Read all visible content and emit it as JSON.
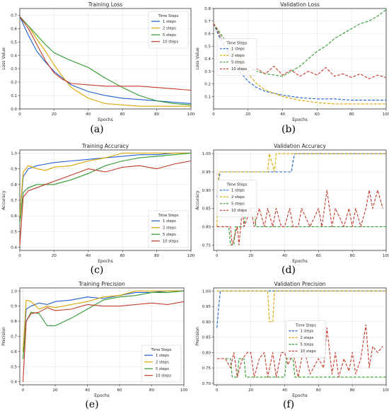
{
  "colors": {
    "1 steps": "#1f5fd0",
    "2 steps": "#d9a400",
    "5 steps": "#2e9a2e",
    "10 steps": "#c43a2a"
  },
  "legend_title": "Time Steps",
  "chart_data": [
    {
      "id": "a",
      "caption": "(a)",
      "type": "line",
      "title": "Training Loss",
      "xlabel": "Epochs",
      "ylabel": "Loss Value",
      "xlim": [
        0,
        100
      ],
      "ylim": [
        0,
        0.75
      ],
      "xticks": [
        0,
        20,
        40,
        60,
        80,
        100
      ],
      "yticks": [
        0.0,
        0.1,
        0.2,
        0.3,
        0.4,
        0.5,
        0.6,
        0.7
      ],
      "ytick_labels": [
        "0.0",
        "0.1",
        "0.2",
        "0.3",
        "0.4",
        "0.5",
        "0.6",
        "0.7"
      ],
      "grid": true,
      "legend_position": "top-right",
      "dashed": false,
      "series": [
        {
          "name": "1 steps",
          "x": [
            0,
            5,
            10,
            15,
            20,
            25,
            30,
            40,
            50,
            60,
            70,
            80,
            90,
            100
          ],
          "y": [
            0.69,
            0.55,
            0.43,
            0.35,
            0.28,
            0.23,
            0.18,
            0.13,
            0.1,
            0.08,
            0.07,
            0.06,
            0.05,
            0.04
          ]
        },
        {
          "name": "2 steps",
          "x": [
            0,
            5,
            10,
            15,
            20,
            25,
            30,
            40,
            50,
            60,
            70,
            80,
            90,
            100
          ],
          "y": [
            0.69,
            0.62,
            0.52,
            0.43,
            0.33,
            0.24,
            0.16,
            0.08,
            0.04,
            0.03,
            0.02,
            0.02,
            0.02,
            0.02
          ]
        },
        {
          "name": "5 steps",
          "x": [
            0,
            5,
            10,
            15,
            20,
            25,
            30,
            40,
            50,
            60,
            70,
            80,
            90,
            100
          ],
          "y": [
            0.69,
            0.62,
            0.55,
            0.48,
            0.42,
            0.39,
            0.36,
            0.31,
            0.23,
            0.16,
            0.1,
            0.06,
            0.04,
            0.03
          ]
        },
        {
          "name": "10 steps",
          "x": [
            0,
            5,
            10,
            15,
            20,
            25,
            30,
            40,
            50,
            60,
            70,
            80,
            90,
            100
          ],
          "y": [
            0.69,
            0.6,
            0.48,
            0.36,
            0.27,
            0.22,
            0.19,
            0.18,
            0.17,
            0.17,
            0.17,
            0.16,
            0.15,
            0.14
          ]
        }
      ]
    },
    {
      "id": "b",
      "caption": "(b)",
      "type": "line",
      "title": "Validation Loss",
      "xlabel": "Epochs",
      "ylabel": "Loss Value",
      "xlim": [
        0,
        100
      ],
      "ylim": [
        0,
        0.8
      ],
      "xticks": [
        0,
        20,
        40,
        60,
        80,
        100
      ],
      "yticks": [
        0.1,
        0.2,
        0.3,
        0.4,
        0.5,
        0.6,
        0.7,
        0.8
      ],
      "ytick_labels": [
        "0.1",
        "0.2",
        "0.3",
        "0.4",
        "0.5",
        "0.6",
        "0.7",
        "0.8"
      ],
      "grid": true,
      "legend_position": "left",
      "dashed": true,
      "series": [
        {
          "name": "1 steps",
          "x": [
            0,
            5,
            10,
            15,
            20,
            25,
            30,
            40,
            50,
            60,
            70,
            80,
            90,
            100
          ],
          "y": [
            0.68,
            0.52,
            0.4,
            0.3,
            0.22,
            0.17,
            0.14,
            0.11,
            0.09,
            0.08,
            0.08,
            0.07,
            0.07,
            0.07
          ]
        },
        {
          "name": "2 steps",
          "x": [
            0,
            5,
            10,
            15,
            20,
            25,
            30,
            40,
            50,
            60,
            70,
            80,
            90,
            100
          ],
          "y": [
            0.68,
            0.58,
            0.48,
            0.38,
            0.28,
            0.2,
            0.15,
            0.1,
            0.07,
            0.05,
            0.04,
            0.04,
            0.04,
            0.04
          ]
        },
        {
          "name": "5 steps",
          "x": [
            0,
            5,
            10,
            15,
            20,
            25,
            30,
            35,
            40,
            45,
            50,
            55,
            60,
            65,
            70,
            75,
            80,
            85,
            90,
            95,
            100
          ],
          "y": [
            0.68,
            0.58,
            0.48,
            0.4,
            0.34,
            0.3,
            0.28,
            0.27,
            0.26,
            0.3,
            0.34,
            0.4,
            0.46,
            0.5,
            0.56,
            0.6,
            0.64,
            0.68,
            0.7,
            0.74,
            0.79
          ]
        },
        {
          "name": "10 steps",
          "x": [
            0,
            5,
            10,
            15,
            20,
            25,
            30,
            35,
            40,
            45,
            50,
            55,
            60,
            65,
            70,
            75,
            80,
            85,
            90,
            95,
            100
          ],
          "y": [
            0.68,
            0.55,
            0.42,
            0.34,
            0.3,
            0.32,
            0.28,
            0.34,
            0.27,
            0.31,
            0.26,
            0.3,
            0.27,
            0.33,
            0.26,
            0.28,
            0.25,
            0.28,
            0.24,
            0.27,
            0.25
          ]
        }
      ]
    },
    {
      "id": "c",
      "caption": "(c)",
      "type": "line",
      "title": "Training Accuracy",
      "xlabel": "Epochs",
      "ylabel": "Accuracy",
      "xlim": [
        0,
        100
      ],
      "ylim": [
        0.38,
        1.02
      ],
      "xticks": [
        0,
        20,
        40,
        60,
        80,
        100
      ],
      "yticks": [
        0.4,
        0.5,
        0.6,
        0.7,
        0.8,
        0.9,
        1.0
      ],
      "ytick_labels": [
        "0.4",
        "0.5",
        "0.6",
        "0.7",
        "0.8",
        "0.9",
        "1.0"
      ],
      "grid": true,
      "legend_position": "bottom-right",
      "dashed": false,
      "series": [
        {
          "name": "1 steps",
          "x": [
            0,
            2,
            5,
            10,
            15,
            20,
            30,
            40,
            50,
            60,
            70,
            80,
            90,
            100
          ],
          "y": [
            0.6,
            0.85,
            0.9,
            0.92,
            0.93,
            0.94,
            0.95,
            0.96,
            0.97,
            0.98,
            0.99,
            0.99,
            1.0,
            1.0
          ]
        },
        {
          "name": "2 steps",
          "x": [
            0,
            2,
            5,
            10,
            15,
            20,
            30,
            40,
            50,
            60,
            70,
            80,
            90,
            100
          ],
          "y": [
            0.6,
            0.88,
            0.92,
            0.9,
            0.89,
            0.91,
            0.92,
            0.95,
            0.97,
            1.0,
            1.0,
            1.0,
            1.0,
            1.0
          ]
        },
        {
          "name": "5 steps",
          "x": [
            0,
            2,
            5,
            10,
            15,
            20,
            30,
            40,
            50,
            60,
            70,
            80,
            90,
            100
          ],
          "y": [
            0.55,
            0.75,
            0.78,
            0.8,
            0.8,
            0.8,
            0.83,
            0.87,
            0.92,
            0.95,
            0.97,
            0.98,
            0.99,
            1.0
          ]
        },
        {
          "name": "10 steps",
          "x": [
            0,
            2,
            5,
            10,
            15,
            20,
            30,
            40,
            50,
            60,
            70,
            80,
            90,
            100
          ],
          "y": [
            0.41,
            0.72,
            0.76,
            0.78,
            0.8,
            0.82,
            0.86,
            0.9,
            0.88,
            0.91,
            0.92,
            0.9,
            0.93,
            0.95
          ]
        }
      ]
    },
    {
      "id": "d",
      "caption": "(d)",
      "type": "line",
      "title": "Validation Accuracy",
      "xlabel": "Epochs",
      "ylabel": "Accuracy",
      "xlim": [
        -2,
        100
      ],
      "ylim": [
        0.735,
        1.01
      ],
      "xticks": [
        0,
        20,
        40,
        60,
        80,
        100
      ],
      "yticks": [
        0.75,
        0.8,
        0.85,
        0.9,
        0.95,
        1.0
      ],
      "ytick_labels": [
        "0.75",
        "0.80",
        "0.85",
        "0.90",
        "0.95",
        "1.00"
      ],
      "grid": true,
      "legend_position": "left",
      "dashed": true,
      "series": [
        {
          "name": "1 steps",
          "x": [
            0,
            1,
            2,
            44,
            45,
            46,
            100
          ],
          "y": [
            0.88,
            0.93,
            0.95,
            0.95,
            0.98,
            1.0,
            1.0
          ]
        },
        {
          "name": "2 steps",
          "x": [
            0,
            1,
            2,
            30,
            31,
            34,
            35,
            100
          ],
          "y": [
            0.8,
            0.95,
            0.95,
            0.95,
            1.0,
            0.95,
            1.0,
            1.0
          ]
        },
        {
          "name": "5 steps",
          "x": [
            0,
            7,
            8,
            10,
            11,
            16,
            17,
            22,
            23,
            30,
            31,
            100
          ],
          "y": [
            0.8,
            0.8,
            0.75,
            0.75,
            0.8,
            0.8,
            0.85,
            0.85,
            0.8,
            0.8,
            0.8,
            0.8
          ]
        },
        {
          "name": "10 steps",
          "x": [
            0,
            8,
            9,
            12,
            13,
            15,
            16,
            20,
            22,
            25,
            28,
            30,
            33,
            35,
            38,
            40,
            43,
            45,
            48,
            50,
            55,
            60,
            62,
            65,
            68,
            70,
            75,
            78,
            80,
            82,
            85,
            88,
            90,
            92,
            95,
            98
          ],
          "y": [
            0.8,
            0.8,
            0.75,
            0.8,
            0.75,
            0.85,
            0.8,
            0.85,
            0.8,
            0.85,
            0.8,
            0.85,
            0.8,
            0.85,
            0.8,
            0.8,
            0.85,
            0.8,
            0.8,
            0.85,
            0.8,
            0.85,
            0.8,
            0.9,
            0.8,
            0.85,
            0.8,
            0.85,
            0.8,
            0.85,
            0.8,
            0.85,
            0.9,
            0.85,
            0.9,
            0.85
          ]
        }
      ]
    },
    {
      "id": "e",
      "caption": "(e)",
      "type": "line",
      "title": "Training Precision",
      "xlabel": "Epochs",
      "ylabel": "Precision",
      "xlim": [
        -2,
        100
      ],
      "ylim": [
        0.38,
        1.02
      ],
      "xticks": [
        0,
        20,
        40,
        60,
        80,
        100
      ],
      "yticks": [
        0.4,
        0.5,
        0.6,
        0.7,
        0.8,
        0.9,
        1.0
      ],
      "ytick_labels": [
        "0.4",
        "0.5",
        "0.6",
        "0.7",
        "0.8",
        "0.9",
        "1.0"
      ],
      "grid": true,
      "legend_position": "bottom-right",
      "dashed": false,
      "series": [
        {
          "name": "1 steps",
          "x": [
            0,
            2,
            5,
            10,
            15,
            20,
            30,
            40,
            50,
            60,
            70,
            80,
            90,
            100
          ],
          "y": [
            0.6,
            0.88,
            0.9,
            0.92,
            0.91,
            0.93,
            0.94,
            0.96,
            0.95,
            0.97,
            0.99,
            0.99,
            1.0,
            1.0
          ]
        },
        {
          "name": "2 steps",
          "x": [
            0,
            2,
            5,
            10,
            15,
            20,
            30,
            40,
            50,
            60,
            70,
            80,
            90,
            100
          ],
          "y": [
            0.6,
            0.94,
            0.93,
            0.88,
            0.9,
            0.89,
            0.91,
            0.93,
            0.96,
            0.97,
            1.0,
            1.0,
            1.0,
            1.0
          ]
        },
        {
          "name": "5 steps",
          "x": [
            0,
            2,
            5,
            10,
            15,
            20,
            30,
            40,
            50,
            60,
            70,
            80,
            90,
            100
          ],
          "y": [
            0.55,
            0.8,
            0.86,
            0.85,
            0.77,
            0.77,
            0.82,
            0.88,
            0.94,
            0.96,
            0.97,
            0.99,
            0.99,
            1.0
          ]
        },
        {
          "name": "10 steps",
          "x": [
            0,
            2,
            5,
            10,
            15,
            20,
            30,
            40,
            50,
            60,
            70,
            80,
            90,
            100
          ],
          "y": [
            0.4,
            0.8,
            0.85,
            0.86,
            0.89,
            0.87,
            0.88,
            0.91,
            0.9,
            0.9,
            0.91,
            0.92,
            0.91,
            0.93
          ]
        }
      ]
    },
    {
      "id": "f",
      "caption": "(f)",
      "type": "line",
      "title": "Validation Precision",
      "xlabel": "Epochs",
      "ylabel": "Precision",
      "xlim": [
        -2,
        100
      ],
      "ylim": [
        0.695,
        1.01
      ],
      "xticks": [
        0,
        20,
        40,
        60,
        80,
        100
      ],
      "yticks": [
        0.7,
        0.75,
        0.8,
        0.85,
        0.9,
        0.95,
        1.0
      ],
      "ytick_labels": [
        "0.70",
        "0.75",
        "0.80",
        "0.85",
        "0.90",
        "0.95",
        "1.00"
      ],
      "grid": true,
      "legend_position": "center-right",
      "dashed": true,
      "series": [
        {
          "name": "1 steps",
          "x": [
            0,
            1,
            2,
            100
          ],
          "y": [
            0.88,
            0.95,
            1.0,
            1.0
          ]
        },
        {
          "name": "2 steps",
          "x": [
            0,
            30,
            31,
            33,
            34,
            100
          ],
          "y": [
            1.0,
            1.0,
            0.9,
            0.9,
            1.0,
            1.0
          ]
        },
        {
          "name": "5 steps",
          "x": [
            0,
            8,
            9,
            12,
            13,
            16,
            17,
            40,
            41,
            45,
            46,
            100
          ],
          "y": [
            0.78,
            0.78,
            0.72,
            0.72,
            0.78,
            0.78,
            0.72,
            0.72,
            0.78,
            0.78,
            0.72,
            0.72
          ]
        },
        {
          "name": "10 steps",
          "x": [
            0,
            5,
            8,
            10,
            12,
            15,
            18,
            20,
            22,
            25,
            28,
            30,
            33,
            35,
            38,
            40,
            42,
            45,
            48,
            50,
            52,
            55,
            58,
            60,
            63,
            65,
            68,
            70,
            72,
            75,
            78,
            80,
            82,
            85,
            88,
            90,
            92,
            95,
            98
          ],
          "y": [
            0.78,
            0.78,
            0.75,
            0.8,
            0.72,
            0.78,
            0.8,
            0.8,
            0.72,
            0.78,
            0.8,
            0.72,
            0.8,
            0.72,
            0.8,
            0.8,
            0.76,
            0.8,
            0.72,
            0.78,
            0.8,
            0.73,
            0.76,
            0.78,
            0.75,
            0.88,
            0.73,
            0.8,
            0.72,
            0.78,
            0.74,
            0.8,
            0.73,
            0.78,
            0.89,
            0.75,
            0.82,
            0.8,
            0.82
          ]
        }
      ]
    }
  ]
}
